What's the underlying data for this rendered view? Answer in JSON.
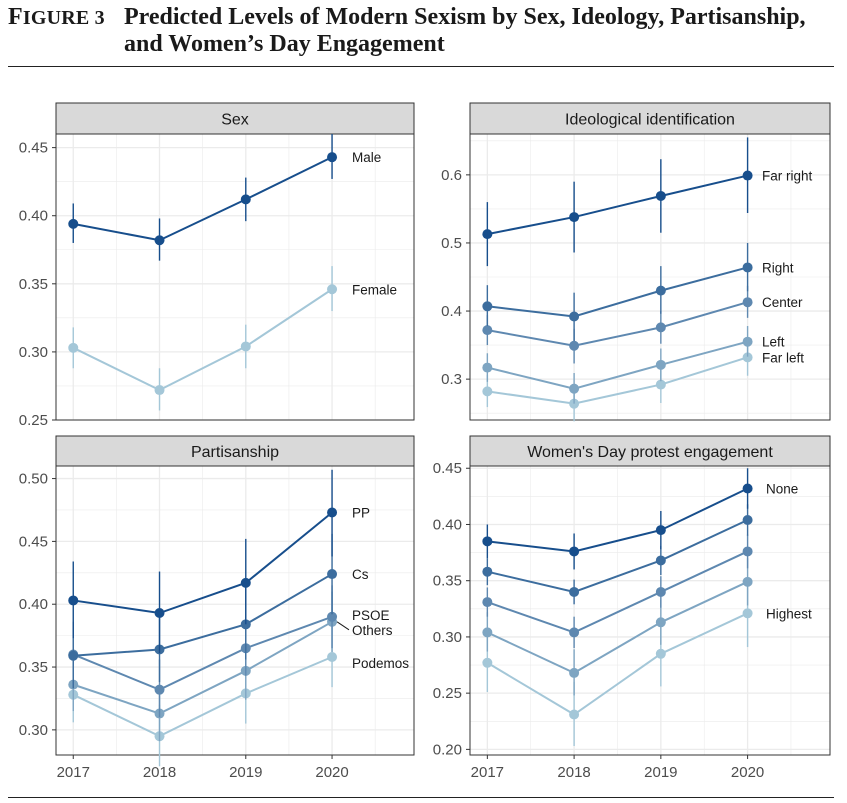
{
  "figure": {
    "label": "Figure 3",
    "title": "Predicted Levels of Modern Sexism by Sex, Ideology, Partisanship, and Women’s Day Engagement"
  },
  "style": {
    "strip_fill": "#d9d9d9",
    "grid_color": "#ebebeb",
    "palette_dark_to_light": [
      "#174e8c",
      "#3c6d9e",
      "#5e88b0",
      "#7ea5c2",
      "#a4c7d8"
    ]
  },
  "chart_data": [
    {
      "type": "line",
      "title": "Sex",
      "x": [
        2017,
        2018,
        2019,
        2020
      ],
      "ylim": [
        0.25,
        0.46
      ],
      "yticks": [
        0.25,
        0.3,
        0.35,
        0.4,
        0.45
      ],
      "ytick_labels": [
        "0.25",
        "0.30",
        "0.35",
        "0.40",
        "0.45"
      ],
      "series": [
        {
          "name": "Male",
          "color": "#174e8c",
          "values": [
            0.394,
            0.382,
            0.412,
            0.443
          ],
          "lower": [
            0.38,
            0.367,
            0.396,
            0.427
          ],
          "upper": [
            0.409,
            0.398,
            0.428,
            0.46
          ]
        },
        {
          "name": "Female",
          "color": "#a4c7d8",
          "values": [
            0.303,
            0.272,
            0.304,
            0.346
          ],
          "lower": [
            0.288,
            0.257,
            0.288,
            0.33
          ],
          "upper": [
            0.318,
            0.288,
            0.32,
            0.363
          ]
        }
      ]
    },
    {
      "type": "line",
      "title": "Ideological identification",
      "x": [
        2017,
        2018,
        2019,
        2020
      ],
      "ylim": [
        0.24,
        0.66
      ],
      "yticks": [
        0.3,
        0.4,
        0.5,
        0.6
      ],
      "ytick_labels": [
        "0.3",
        "0.4",
        "0.5",
        "0.6"
      ],
      "series": [
        {
          "name": "Far right",
          "color": "#174e8c",
          "values": [
            0.513,
            0.538,
            0.569,
            0.599
          ],
          "lower": [
            0.466,
            0.486,
            0.515,
            0.544
          ],
          "upper": [
            0.56,
            0.59,
            0.623,
            0.655
          ]
        },
        {
          "name": "Right",
          "color": "#3c6d9e",
          "values": [
            0.407,
            0.392,
            0.43,
            0.464
          ],
          "lower": [
            0.378,
            0.356,
            0.396,
            0.429
          ],
          "upper": [
            0.438,
            0.427,
            0.466,
            0.5
          ]
        },
        {
          "name": "Center",
          "color": "#5e88b0",
          "values": [
            0.372,
            0.349,
            0.376,
            0.413
          ],
          "lower": [
            0.35,
            0.323,
            0.352,
            0.39
          ],
          "upper": [
            0.394,
            0.374,
            0.4,
            0.437
          ]
        },
        {
          "name": "Left",
          "color": "#7ea5c2",
          "values": [
            0.317,
            0.286,
            0.321,
            0.355
          ],
          "lower": [
            0.296,
            0.264,
            0.297,
            0.333
          ],
          "upper": [
            0.338,
            0.309,
            0.345,
            0.378
          ]
        },
        {
          "name": "Far left",
          "color": "#a4c7d8",
          "values": [
            0.282,
            0.264,
            0.292,
            0.332
          ],
          "lower": [
            0.259,
            0.238,
            0.265,
            0.305
          ],
          "upper": [
            0.306,
            0.29,
            0.32,
            0.36
          ]
        }
      ]
    },
    {
      "type": "line",
      "title": "Partisanship",
      "x": [
        2017,
        2018,
        2019,
        2020
      ],
      "ylim": [
        0.28,
        0.51
      ],
      "yticks": [
        0.3,
        0.35,
        0.4,
        0.45,
        0.5
      ],
      "ytick_labels": [
        "0.30",
        "0.35",
        "0.40",
        "0.45",
        "0.50"
      ],
      "series": [
        {
          "name": "PP",
          "color": "#174e8c",
          "values": [
            0.403,
            0.393,
            0.417,
            0.473
          ],
          "lower": [
            0.373,
            0.361,
            0.384,
            0.438
          ],
          "upper": [
            0.434,
            0.426,
            0.452,
            0.507
          ]
        },
        {
          "name": "Cs",
          "color": "#3c6d9e",
          "values": [
            0.359,
            0.364,
            0.384,
            0.424
          ],
          "lower": [
            0.333,
            0.338,
            0.356,
            0.392
          ],
          "upper": [
            0.386,
            0.391,
            0.413,
            0.456
          ]
        },
        {
          "name": "PSOE",
          "color": "#5e88b0",
          "values": [
            0.36,
            0.332,
            0.365,
            0.39
          ],
          "lower": [
            0.333,
            0.31,
            0.343,
            0.365
          ],
          "upper": [
            0.386,
            0.356,
            0.39,
            0.415
          ]
        },
        {
          "name": "Others",
          "color": "#7ea5c2",
          "values": [
            0.336,
            0.313,
            0.347,
            0.386
          ],
          "lower": [
            0.315,
            0.291,
            0.324,
            0.362
          ],
          "upper": [
            0.358,
            0.336,
            0.371,
            0.41
          ]
        },
        {
          "name": "Podemos",
          "color": "#a4c7d8",
          "values": [
            0.328,
            0.295,
            0.329,
            0.358
          ],
          "lower": [
            0.306,
            0.271,
            0.305,
            0.334
          ],
          "upper": [
            0.35,
            0.32,
            0.353,
            0.383
          ]
        }
      ]
    },
    {
      "type": "line",
      "title": "Women's Day protest engagement",
      "x": [
        2017,
        2018,
        2019,
        2020
      ],
      "ylim": [
        0.195,
        0.452
      ],
      "yticks": [
        0.2,
        0.25,
        0.3,
        0.35,
        0.4,
        0.45
      ],
      "ytick_labels": [
        "0.20",
        "0.25",
        "0.30",
        "0.35",
        "0.40",
        "0.45"
      ],
      "series": [
        {
          "name": "None",
          "color": "#174e8c",
          "values": [
            0.385,
            0.376,
            0.395,
            0.432
          ],
          "lower": [
            0.37,
            0.36,
            0.378,
            0.414
          ],
          "upper": [
            0.4,
            0.392,
            0.412,
            0.45
          ]
        },
        {
          "name": "",
          "color": "#3c6d9e",
          "values": [
            0.358,
            0.34,
            0.368,
            0.404
          ],
          "lower": [
            0.346,
            0.329,
            0.355,
            0.39
          ],
          "upper": [
            0.37,
            0.351,
            0.381,
            0.418
          ]
        },
        {
          "name": "",
          "color": "#5e88b0",
          "values": [
            0.331,
            0.304,
            0.34,
            0.376
          ],
          "lower": [
            0.318,
            0.29,
            0.326,
            0.361
          ],
          "upper": [
            0.344,
            0.318,
            0.354,
            0.391
          ]
        },
        {
          "name": "",
          "color": "#7ea5c2",
          "values": [
            0.304,
            0.268,
            0.313,
            0.349
          ],
          "lower": [
            0.287,
            0.248,
            0.293,
            0.328
          ],
          "upper": [
            0.322,
            0.289,
            0.333,
            0.37
          ]
        },
        {
          "name": "Highest",
          "color": "#a4c7d8",
          "values": [
            0.277,
            0.231,
            0.285,
            0.321
          ],
          "lower": [
            0.251,
            0.203,
            0.256,
            0.291
          ],
          "upper": [
            0.303,
            0.26,
            0.315,
            0.352
          ]
        }
      ]
    }
  ]
}
